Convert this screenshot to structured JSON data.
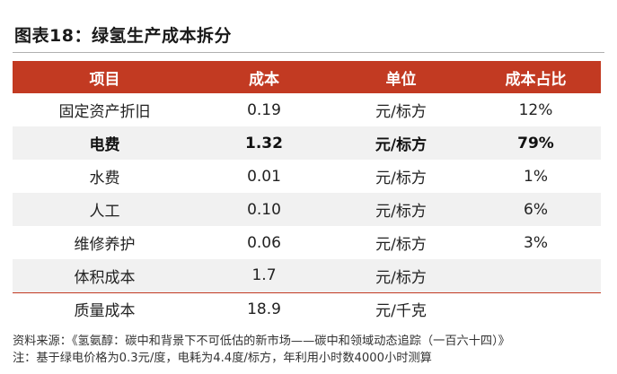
{
  "figure": {
    "title": "图表18：绿氢生产成本拆分"
  },
  "table": {
    "headers": [
      "项目",
      "成本",
      "单位",
      "成本占比"
    ],
    "rows": [
      {
        "item": "固定资产折旧",
        "cost": "0.19",
        "unit": "元/标方",
        "share": "12%",
        "bold": false
      },
      {
        "item": "电费",
        "cost": "1.32",
        "unit": "元/标方",
        "share": "79%",
        "bold": true
      },
      {
        "item": "水费",
        "cost": "0.01",
        "unit": "元/标方",
        "share": "1%",
        "bold": false
      },
      {
        "item": "人工",
        "cost": "0.10",
        "unit": "元/标方",
        "share": "6%",
        "bold": false
      },
      {
        "item": "维修养护",
        "cost": "0.06",
        "unit": "元/标方",
        "share": "3%",
        "bold": false
      },
      {
        "item": "体积成本",
        "cost": "1.7",
        "unit": "元/标方",
        "share": "",
        "bold": false
      },
      {
        "item": "质量成本",
        "cost": "18.9",
        "unit": "元/千克",
        "share": "",
        "bold": false
      }
    ]
  },
  "notes": {
    "source": "资料来源：《氢氨醇：碳中和背景下不可低估的新市场——碳中和领域动态追踪（一百六十四）》",
    "note": "注：基于绿电价格为0.3元/度，电耗为4.4度/标方，年利用小时数4000小时测算"
  },
  "colors": {
    "header_bg": "#c23a22",
    "header_text": "#ffffff",
    "shaded_row": "#f1f1f1"
  }
}
